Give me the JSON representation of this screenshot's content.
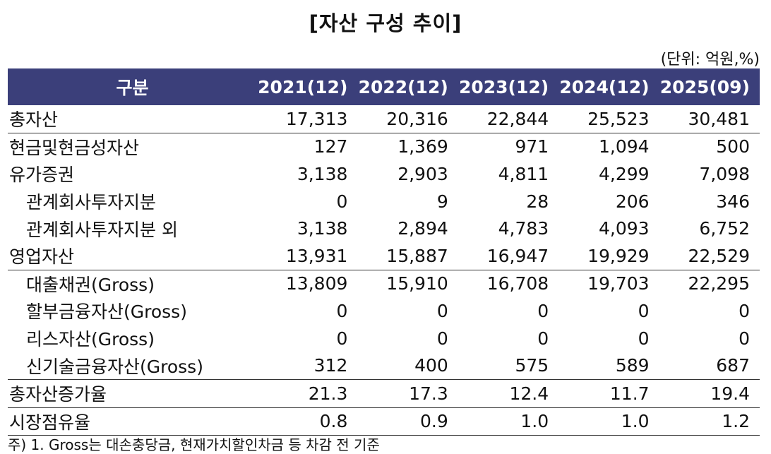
{
  "title": "[자산 구성 추이]",
  "unit": "(단위: 억원,%)",
  "header": {
    "label": "구분",
    "years": [
      "2021(12)",
      "2022(12)",
      "2023(12)",
      "2024(12)",
      "2025(09)"
    ]
  },
  "rows": [
    {
      "label": "총자산",
      "values": [
        "17,313",
        "20,316",
        "22,844",
        "25,523",
        "30,481"
      ]
    },
    {
      "label": "현금및현금성자산",
      "values": [
        "127",
        "1,369",
        "971",
        "1,094",
        "500"
      ]
    },
    {
      "label": "유가증권",
      "values": [
        "3,138",
        "2,903",
        "4,811",
        "4,299",
        "7,098"
      ]
    },
    {
      "label": "관계회사투자지분",
      "values": [
        "0",
        "9",
        "28",
        "206",
        "346"
      ]
    },
    {
      "label": "관계회사투자지분 외",
      "values": [
        "3,138",
        "2,894",
        "4,783",
        "4,093",
        "6,752"
      ]
    },
    {
      "label": "영업자산",
      "values": [
        "13,931",
        "15,887",
        "16,947",
        "19,929",
        "22,529"
      ]
    },
    {
      "label": "대출채권(Gross)",
      "values": [
        "13,809",
        "15,910",
        "16,708",
        "19,703",
        "22,295"
      ]
    },
    {
      "label": "할부금융자산(Gross)",
      "values": [
        "0",
        "0",
        "0",
        "0",
        "0"
      ]
    },
    {
      "label": "리스자산(Gross)",
      "values": [
        "0",
        "0",
        "0",
        "0",
        "0"
      ]
    },
    {
      "label": "신기술금융자산(Gross)",
      "values": [
        "312",
        "400",
        "575",
        "589",
        "687"
      ]
    },
    {
      "label": "총자산증가율",
      "values": [
        "21.3",
        "17.3",
        "12.4",
        "11.7",
        "19.4"
      ]
    },
    {
      "label": "시장점유율",
      "values": [
        "0.8",
        "0.9",
        "1.0",
        "1.0",
        "1.2"
      ]
    }
  ],
  "footnote": "주) 1. Gross는 대손충당금, 현재가치할인차금 등 차감 전 기준"
}
